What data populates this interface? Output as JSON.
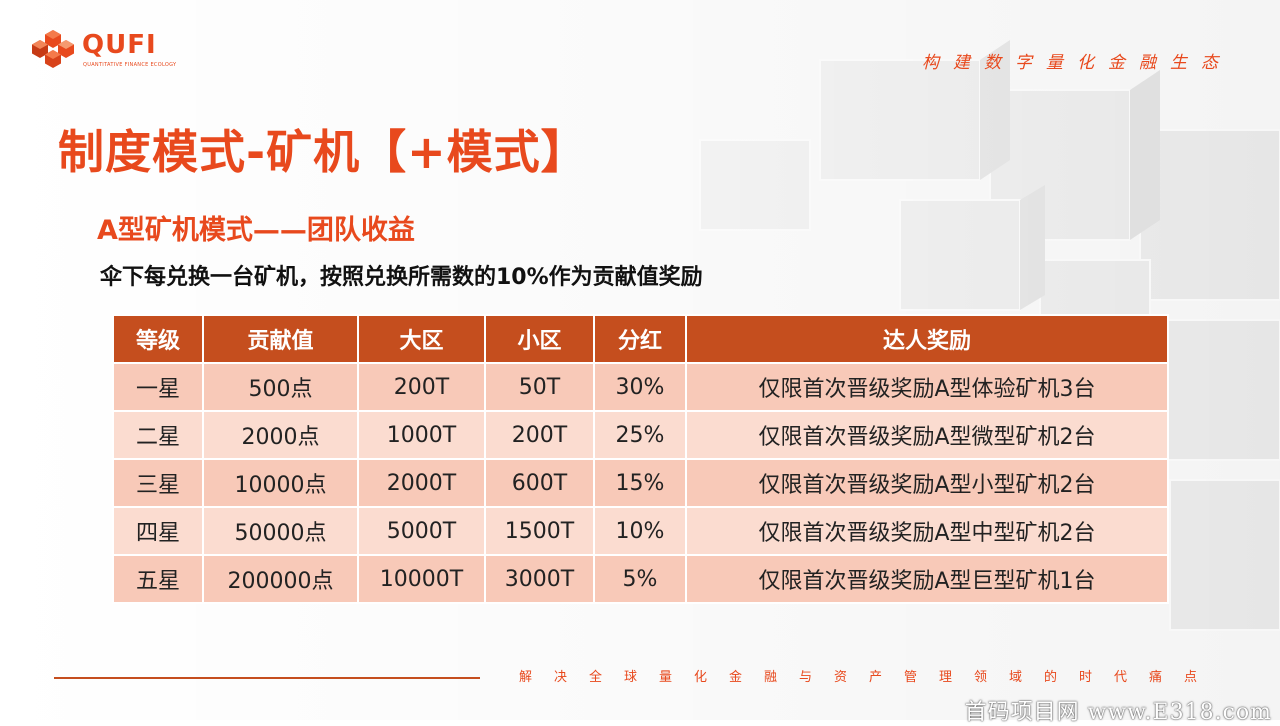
{
  "brand": {
    "name": "QUFI",
    "tagline": "QUANTITATIVE FINANCE ECOLOGY",
    "accent_color": "#e8491d"
  },
  "header": {
    "slogan": "构建数字量化金融生态"
  },
  "title": "制度模式-矿机【+模式】",
  "subtitle": "A型矿机模式——团队收益",
  "description": "伞下每兑换一台矿机，按照兑换所需数的10%作为贡献值奖励",
  "table": {
    "header_color": "#c54e1e",
    "row_color": "#f8c9b8",
    "columns": [
      "等级",
      "贡献值",
      "大区",
      "小区",
      "分红",
      "达人奖励"
    ],
    "rows": [
      [
        "一星",
        "500点",
        "200T",
        "50T",
        "30%",
        "仅限首次晋级奖励A型体验矿机3台"
      ],
      [
        "二星",
        "2000点",
        "1000T",
        "200T",
        "25%",
        "仅限首次晋级奖励A型微型矿机2台"
      ],
      [
        "三星",
        "10000点",
        "2000T",
        "600T",
        "15%",
        "仅限首次晋级奖励A型小型矿机2台"
      ],
      [
        "四星",
        "50000点",
        "5000T",
        "1500T",
        "10%",
        "仅限首次晋级奖励A型中型矿机2台"
      ],
      [
        "五星",
        "200000点",
        "10000T",
        "3000T",
        "5%",
        "仅限首次晋级奖励A型巨型矿机1台"
      ]
    ]
  },
  "footer": {
    "slogan": "解决全球量化金融与资产管理领域的时代痛点"
  },
  "watermark": "首码项目网 www.E318.com"
}
